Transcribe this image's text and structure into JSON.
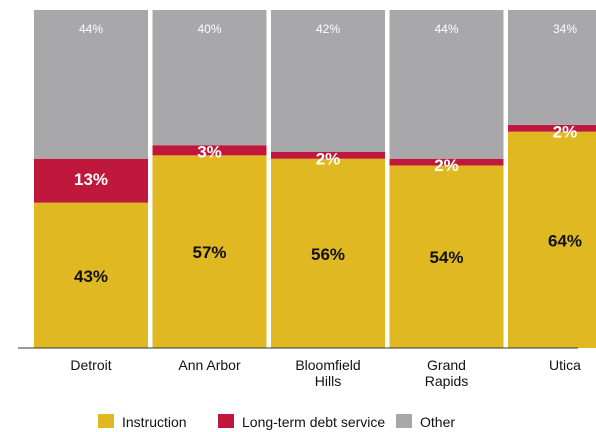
{
  "chart_data": {
    "type": "bar",
    "stacked": true,
    "title": "",
    "xlabel": "",
    "ylabel": "",
    "ylim": [
      0,
      100
    ],
    "grid": false,
    "legend_position": "bottom",
    "categories": [
      [
        "Detroit"
      ],
      [
        "Ann Arbor"
      ],
      [
        "Bloomfield",
        "Hills"
      ],
      [
        "Grand",
        "Rapids"
      ],
      [
        "Utica"
      ]
    ],
    "series": [
      {
        "name": "Instruction",
        "color": "#e0b822",
        "values": [
          43,
          57,
          56,
          54,
          64
        ],
        "labels": [
          "43%",
          "57%",
          "56%",
          "54%",
          "64%"
        ]
      },
      {
        "name": "Long-term debt service",
        "color": "#c0173d",
        "values": [
          13,
          3,
          2,
          2,
          2
        ],
        "labels": [
          "13%",
          "3%",
          "2%",
          "2%",
          "2%"
        ]
      },
      {
        "name": "Other",
        "color": "#a8a8aa",
        "values": [
          44,
          40,
          42,
          44,
          34
        ],
        "labels": [
          "44%",
          "40%",
          "42%",
          "44%",
          "34%"
        ]
      }
    ]
  }
}
